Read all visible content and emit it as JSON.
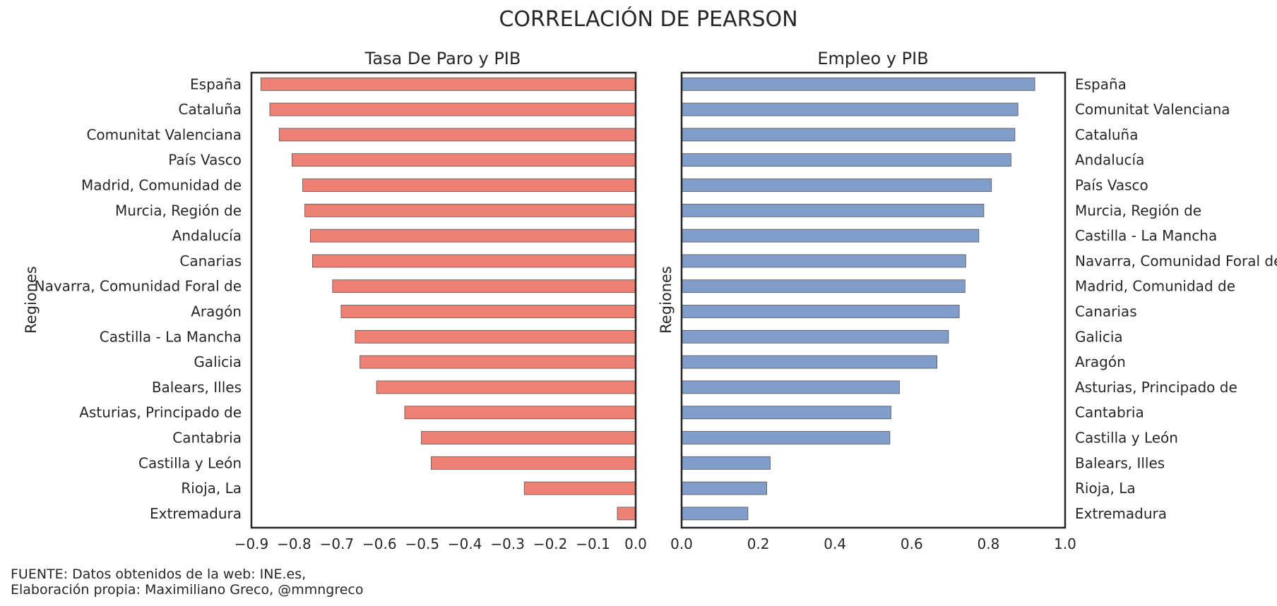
{
  "figure": {
    "title": "CORRELACIÓN DE PEARSON",
    "source_line1": "FUENTE: Datos obtenidos de la web: INE.es,",
    "source_line2": "Elaboración propia: Maximiliano Greco, @mmngreco"
  },
  "colors": {
    "left_bars": "#ee8074",
    "right_bars": "#819dc9",
    "bar_edge": "#555555",
    "axes": "#262626",
    "text": "#262626"
  },
  "chart_data": [
    {
      "type": "bar",
      "orientation": "horizontal",
      "title": "Tasa De Paro y PIB",
      "xlabel": "",
      "ylabel": "Regiones",
      "xlim": [
        -0.9,
        0.0
      ],
      "xticks": [
        -0.9,
        -0.8,
        -0.7,
        -0.6,
        -0.5,
        -0.4,
        -0.3,
        -0.2,
        -0.1,
        0.0
      ],
      "xtick_labels": [
        "−0.9",
        "−0.8",
        "−0.7",
        "−0.6",
        "−0.5",
        "−0.4",
        "−0.3",
        "−0.2",
        "−0.1",
        "0.0"
      ],
      "ytick_side": "left",
      "grid": false,
      "categories": [
        "España",
        "Cataluña",
        "Comunitat Valenciana",
        "País Vasco",
        "Madrid, Comunidad de",
        "Murcia, Región de",
        "Andalucía",
        "Canarias",
        "Navarra, Comunidad Foral de",
        "Aragón",
        "Castilla - La Mancha",
        "Galicia",
        "Balears, Illes",
        "Asturias, Principado de",
        "Cantabria",
        "Castilla y León",
        "Rioja, La",
        "Extremadura"
      ],
      "values": [
        -0.878,
        -0.857,
        -0.835,
        -0.805,
        -0.78,
        -0.775,
        -0.762,
        -0.757,
        -0.71,
        -0.69,
        -0.657,
        -0.646,
        -0.607,
        -0.541,
        -0.502,
        -0.479,
        -0.261,
        -0.043
      ]
    },
    {
      "type": "bar",
      "orientation": "horizontal",
      "title": "Empleo y PIB",
      "xlabel": "",
      "ylabel": "Regiones",
      "xlim": [
        0.0,
        1.0
      ],
      "xticks": [
        0.0,
        0.2,
        0.4,
        0.6,
        0.8,
        1.0
      ],
      "xtick_labels": [
        "0.0",
        "0.2",
        "0.4",
        "0.6",
        "0.8",
        "1.0"
      ],
      "ytick_side": "right",
      "grid": false,
      "categories": [
        "España",
        "Comunitat Valenciana",
        "Cataluña",
        "Andalucía",
        "País Vasco",
        "Murcia, Región de",
        "Castilla - La Mancha",
        "Navarra, Comunidad Foral de",
        "Madrid, Comunidad de",
        "Canarias",
        "Galicia",
        "Aragón",
        "Asturias, Principado de",
        "Cantabria",
        "Castilla y León",
        "Balears, Illes",
        "Rioja, La",
        "Extremadura"
      ],
      "values": [
        0.921,
        0.877,
        0.869,
        0.859,
        0.808,
        0.788,
        0.775,
        0.741,
        0.739,
        0.724,
        0.696,
        0.666,
        0.568,
        0.546,
        0.543,
        0.231,
        0.222,
        0.173
      ]
    }
  ]
}
